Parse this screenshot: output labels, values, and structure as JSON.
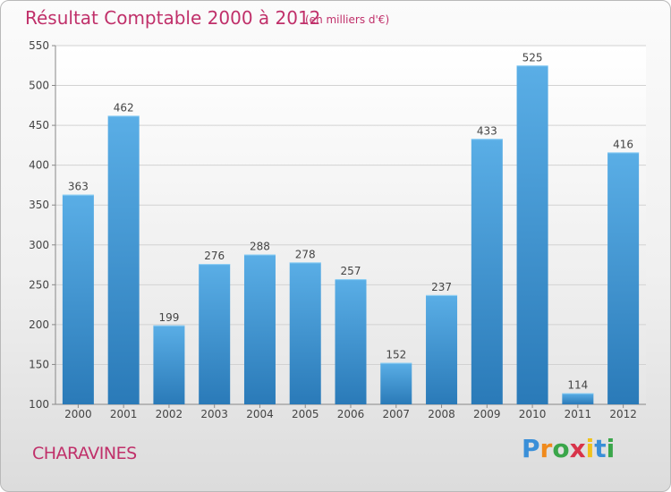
{
  "header": {
    "title": "Résultat Comptable 2000 à 2012",
    "subtitle": "(en milliers d'€)"
  },
  "footer": {
    "place": "CHARAVINES",
    "logo_letters": [
      "P",
      "r",
      "o",
      "x",
      "i",
      "t",
      "i"
    ]
  },
  "colors": {
    "accent": "#c0306a",
    "bar_top": "#5aaee6",
    "bar_bottom": "#2a7ab8",
    "logo": [
      "#3a8fd8",
      "#f08a1c",
      "#3aa64a",
      "#d8344a",
      "#f0c21c",
      "#3a8fd8",
      "#3aa64a"
    ]
  },
  "chart_data": {
    "type": "bar",
    "title": "Résultat Comptable 2000 à 2012",
    "subtitle": "(en milliers d'€)",
    "categories": [
      "2000",
      "2001",
      "2002",
      "2003",
      "2004",
      "2005",
      "2006",
      "2007",
      "2008",
      "2009",
      "2010",
      "2011",
      "2012"
    ],
    "values": [
      363,
      462,
      199,
      276,
      288,
      278,
      257,
      152,
      237,
      433,
      525,
      114,
      416
    ],
    "yticks": [
      100,
      150,
      200,
      250,
      300,
      350,
      400,
      450,
      500,
      550
    ],
    "ylim": [
      100,
      550
    ],
    "xlabel": "",
    "ylabel": "",
    "grid": true
  }
}
